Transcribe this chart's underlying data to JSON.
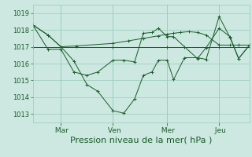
{
  "background_color": "#cce8e0",
  "grid_color": "#99ccbb",
  "line_color": "#1a5c2a",
  "marker_color": "#1a5c2a",
  "xlabel": "Pression niveau de la mer( hPa )",
  "xlabel_fontsize": 8,
  "ylim": [
    1012.5,
    1019.5
  ],
  "yticks": [
    1013,
    1014,
    1015,
    1016,
    1017,
    1018,
    1019
  ],
  "xtick_labels": [
    " Mar",
    " Ven",
    " Mer",
    " Jeu"
  ],
  "xtick_positions": [
    0.13,
    0.37,
    0.62,
    0.86
  ],
  "series_x": [
    [
      0.0,
      0.07,
      0.13,
      0.2,
      0.37,
      0.44,
      0.51,
      0.58,
      0.62,
      0.65,
      0.68,
      0.72,
      0.76,
      0.8,
      0.86,
      0.91,
      0.95,
      1.0
    ],
    [
      0.0,
      0.13,
      0.37,
      0.62,
      0.86,
      1.0
    ],
    [
      0.0,
      0.07,
      0.13,
      0.19,
      0.25,
      0.3,
      0.37,
      0.42,
      0.47,
      0.51,
      0.55,
      0.58,
      0.62,
      0.65,
      0.7,
      0.76,
      0.8,
      0.86,
      0.91,
      0.95,
      1.0
    ],
    [
      0.0,
      0.07,
      0.13,
      0.19,
      0.25,
      0.3,
      0.37,
      0.42,
      0.47,
      0.51,
      0.55,
      0.58,
      0.62,
      0.65,
      0.7,
      0.76,
      0.8,
      0.86,
      0.91,
      0.95,
      1.0
    ]
  ],
  "series_y": [
    [
      1018.3,
      1017.7,
      1017.0,
      1017.05,
      1017.2,
      1017.35,
      1017.5,
      1017.65,
      1017.75,
      1017.8,
      1017.85,
      1017.9,
      1017.85,
      1017.7,
      1017.1,
      1017.1,
      1017.1,
      1017.1
    ],
    [
      1017.0,
      1017.0,
      1017.0,
      1017.0,
      1017.0,
      1017.0
    ],
    [
      1018.3,
      1017.7,
      1017.0,
      1016.15,
      1014.75,
      1014.35,
      1013.2,
      1013.05,
      1013.9,
      1015.3,
      1015.5,
      1016.2,
      1016.2,
      1015.05,
      1016.35,
      1016.35,
      1016.25,
      1018.8,
      1017.55,
      1016.3,
      1017.1
    ],
    [
      1018.3,
      1016.85,
      1016.85,
      1015.5,
      1015.3,
      1015.5,
      1016.2,
      1016.2,
      1016.1,
      1017.8,
      1017.85,
      1018.1,
      1017.6,
      1017.6,
      1017.0,
      1016.3,
      1016.95,
      1018.1,
      1017.6,
      1016.3,
      1017.1
    ]
  ],
  "n_points": 19
}
